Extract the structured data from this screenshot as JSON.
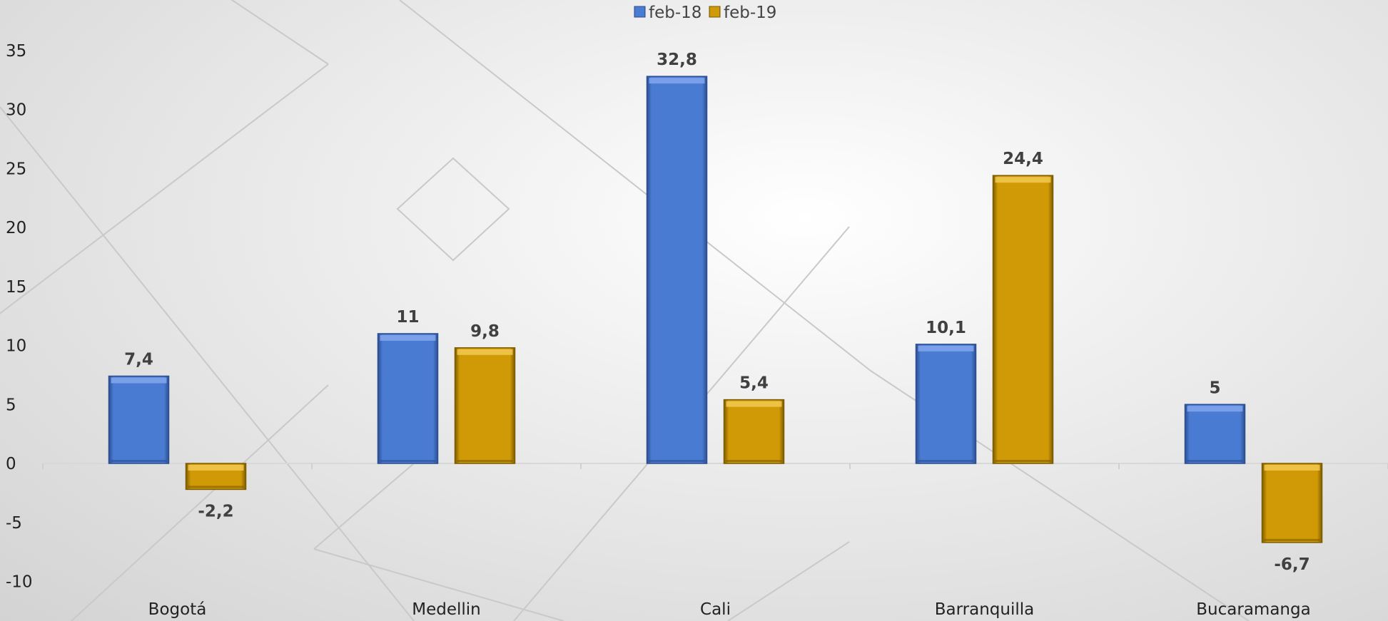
{
  "chart_data": {
    "type": "bar",
    "categories": [
      "Bogotá",
      "Medellin",
      "Cali",
      "Barranquilla",
      "Bucaramanga"
    ],
    "series": [
      {
        "name": "feb-18",
        "values": [
          7.4,
          11,
          32.8,
          10.1,
          5
        ],
        "labels": [
          "7,4",
          "11",
          "32,8",
          "10,1",
          "5"
        ],
        "color": "#4a7bd3"
      },
      {
        "name": "feb-19",
        "values": [
          -2.2,
          9.8,
          5.4,
          24.4,
          -6.7
        ],
        "labels": [
          "-2,2",
          "9,8",
          "5,4",
          "24,4",
          "-6,7"
        ],
        "color": "#cf9a06"
      }
    ],
    "yticks": [
      "35",
      "30",
      "25",
      "20",
      "15",
      "10",
      "5",
      "0",
      "-5",
      "-10"
    ],
    "ylim": [
      -10,
      35
    ],
    "title": "",
    "xlabel": "",
    "ylabel": "",
    "legend": "top-center",
    "grid": false
  }
}
